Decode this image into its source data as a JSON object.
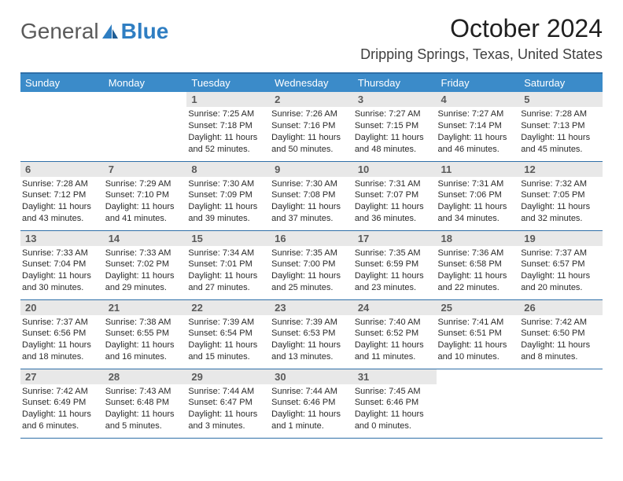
{
  "brand": {
    "part1": "General",
    "part2": "Blue"
  },
  "title": {
    "month": "October 2024",
    "location": "Dripping Springs, Texas, United States"
  },
  "colors": {
    "header_bg": "#3b8bc9",
    "rule": "#2f6fa8",
    "daynum_bg": "#e8e8e8",
    "text": "#202020",
    "logo_grey": "#5a5a5a",
    "logo_blue": "#2f7ec2"
  },
  "daynames": [
    "Sunday",
    "Monday",
    "Tuesday",
    "Wednesday",
    "Thursday",
    "Friday",
    "Saturday"
  ],
  "cells": [
    [
      null,
      null,
      {
        "n": "1",
        "sr": "Sunrise: 7:25 AM",
        "ss": "Sunset: 7:18 PM",
        "dl": "Daylight: 11 hours and 52 minutes."
      },
      {
        "n": "2",
        "sr": "Sunrise: 7:26 AM",
        "ss": "Sunset: 7:16 PM",
        "dl": "Daylight: 11 hours and 50 minutes."
      },
      {
        "n": "3",
        "sr": "Sunrise: 7:27 AM",
        "ss": "Sunset: 7:15 PM",
        "dl": "Daylight: 11 hours and 48 minutes."
      },
      {
        "n": "4",
        "sr": "Sunrise: 7:27 AM",
        "ss": "Sunset: 7:14 PM",
        "dl": "Daylight: 11 hours and 46 minutes."
      },
      {
        "n": "5",
        "sr": "Sunrise: 7:28 AM",
        "ss": "Sunset: 7:13 PM",
        "dl": "Daylight: 11 hours and 45 minutes."
      }
    ],
    [
      {
        "n": "6",
        "sr": "Sunrise: 7:28 AM",
        "ss": "Sunset: 7:12 PM",
        "dl": "Daylight: 11 hours and 43 minutes."
      },
      {
        "n": "7",
        "sr": "Sunrise: 7:29 AM",
        "ss": "Sunset: 7:10 PM",
        "dl": "Daylight: 11 hours and 41 minutes."
      },
      {
        "n": "8",
        "sr": "Sunrise: 7:30 AM",
        "ss": "Sunset: 7:09 PM",
        "dl": "Daylight: 11 hours and 39 minutes."
      },
      {
        "n": "9",
        "sr": "Sunrise: 7:30 AM",
        "ss": "Sunset: 7:08 PM",
        "dl": "Daylight: 11 hours and 37 minutes."
      },
      {
        "n": "10",
        "sr": "Sunrise: 7:31 AM",
        "ss": "Sunset: 7:07 PM",
        "dl": "Daylight: 11 hours and 36 minutes."
      },
      {
        "n": "11",
        "sr": "Sunrise: 7:31 AM",
        "ss": "Sunset: 7:06 PM",
        "dl": "Daylight: 11 hours and 34 minutes."
      },
      {
        "n": "12",
        "sr": "Sunrise: 7:32 AM",
        "ss": "Sunset: 7:05 PM",
        "dl": "Daylight: 11 hours and 32 minutes."
      }
    ],
    [
      {
        "n": "13",
        "sr": "Sunrise: 7:33 AM",
        "ss": "Sunset: 7:04 PM",
        "dl": "Daylight: 11 hours and 30 minutes."
      },
      {
        "n": "14",
        "sr": "Sunrise: 7:33 AM",
        "ss": "Sunset: 7:02 PM",
        "dl": "Daylight: 11 hours and 29 minutes."
      },
      {
        "n": "15",
        "sr": "Sunrise: 7:34 AM",
        "ss": "Sunset: 7:01 PM",
        "dl": "Daylight: 11 hours and 27 minutes."
      },
      {
        "n": "16",
        "sr": "Sunrise: 7:35 AM",
        "ss": "Sunset: 7:00 PM",
        "dl": "Daylight: 11 hours and 25 minutes."
      },
      {
        "n": "17",
        "sr": "Sunrise: 7:35 AM",
        "ss": "Sunset: 6:59 PM",
        "dl": "Daylight: 11 hours and 23 minutes."
      },
      {
        "n": "18",
        "sr": "Sunrise: 7:36 AM",
        "ss": "Sunset: 6:58 PM",
        "dl": "Daylight: 11 hours and 22 minutes."
      },
      {
        "n": "19",
        "sr": "Sunrise: 7:37 AM",
        "ss": "Sunset: 6:57 PM",
        "dl": "Daylight: 11 hours and 20 minutes."
      }
    ],
    [
      {
        "n": "20",
        "sr": "Sunrise: 7:37 AM",
        "ss": "Sunset: 6:56 PM",
        "dl": "Daylight: 11 hours and 18 minutes."
      },
      {
        "n": "21",
        "sr": "Sunrise: 7:38 AM",
        "ss": "Sunset: 6:55 PM",
        "dl": "Daylight: 11 hours and 16 minutes."
      },
      {
        "n": "22",
        "sr": "Sunrise: 7:39 AM",
        "ss": "Sunset: 6:54 PM",
        "dl": "Daylight: 11 hours and 15 minutes."
      },
      {
        "n": "23",
        "sr": "Sunrise: 7:39 AM",
        "ss": "Sunset: 6:53 PM",
        "dl": "Daylight: 11 hours and 13 minutes."
      },
      {
        "n": "24",
        "sr": "Sunrise: 7:40 AM",
        "ss": "Sunset: 6:52 PM",
        "dl": "Daylight: 11 hours and 11 minutes."
      },
      {
        "n": "25",
        "sr": "Sunrise: 7:41 AM",
        "ss": "Sunset: 6:51 PM",
        "dl": "Daylight: 11 hours and 10 minutes."
      },
      {
        "n": "26",
        "sr": "Sunrise: 7:42 AM",
        "ss": "Sunset: 6:50 PM",
        "dl": "Daylight: 11 hours and 8 minutes."
      }
    ],
    [
      {
        "n": "27",
        "sr": "Sunrise: 7:42 AM",
        "ss": "Sunset: 6:49 PM",
        "dl": "Daylight: 11 hours and 6 minutes."
      },
      {
        "n": "28",
        "sr": "Sunrise: 7:43 AM",
        "ss": "Sunset: 6:48 PM",
        "dl": "Daylight: 11 hours and 5 minutes."
      },
      {
        "n": "29",
        "sr": "Sunrise: 7:44 AM",
        "ss": "Sunset: 6:47 PM",
        "dl": "Daylight: 11 hours and 3 minutes."
      },
      {
        "n": "30",
        "sr": "Sunrise: 7:44 AM",
        "ss": "Sunset: 6:46 PM",
        "dl": "Daylight: 11 hours and 1 minute."
      },
      {
        "n": "31",
        "sr": "Sunrise: 7:45 AM",
        "ss": "Sunset: 6:46 PM",
        "dl": "Daylight: 11 hours and 0 minutes."
      },
      null,
      null
    ]
  ]
}
